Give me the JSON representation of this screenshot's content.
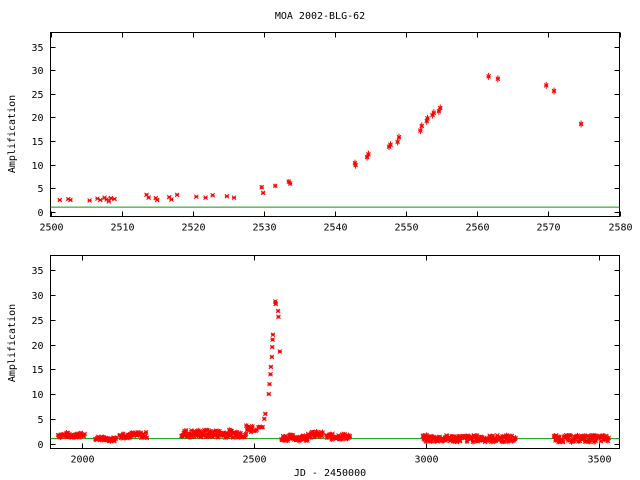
{
  "title": "MOA 2002-BLG-62",
  "colors": {
    "points": "#ff0000",
    "baseline": "#00a000",
    "axes": "#000000"
  },
  "chart_data": [
    {
      "type": "scatter",
      "title": "MOA 2002-BLG-62",
      "xlabel": "",
      "ylabel": "Amplification",
      "xlim": [
        2500,
        2580
      ],
      "ylim": [
        -1,
        38
      ],
      "xticks": [
        "2500",
        "2510",
        "2520",
        "2530",
        "2540",
        "2550",
        "2560",
        "2570",
        "2580"
      ],
      "yticks": [
        "0",
        "5",
        "10",
        "15",
        "20",
        "25",
        "30",
        "35"
      ],
      "baseline": 1.0,
      "grid": false,
      "points": [
        [
          2501.3,
          2.5
        ],
        [
          2502.5,
          2.7
        ],
        [
          2502.8,
          2.5
        ],
        [
          2505.5,
          2.4
        ],
        [
          2506.6,
          2.8
        ],
        [
          2507.0,
          2.5
        ],
        [
          2507.6,
          3.0
        ],
        [
          2507.9,
          2.6
        ],
        [
          2508.2,
          2.2
        ],
        [
          2508.5,
          2.9
        ],
        [
          2509.0,
          2.7
        ],
        [
          2513.5,
          3.6
        ],
        [
          2513.8,
          3.0
        ],
        [
          2514.8,
          2.9
        ],
        [
          2515.0,
          2.5
        ],
        [
          2516.7,
          3.1
        ],
        [
          2517.0,
          2.6
        ],
        [
          2517.8,
          3.6
        ],
        [
          2520.5,
          3.2
        ],
        [
          2521.8,
          3.0
        ],
        [
          2522.8,
          3.5
        ],
        [
          2524.8,
          3.3
        ],
        [
          2525.8,
          3.0
        ],
        [
          2529.7,
          5.2
        ],
        [
          2529.9,
          4.0
        ],
        [
          2531.6,
          5.5
        ],
        [
          2533.5,
          6.4
        ],
        [
          2533.7,
          6.0
        ],
        [
          2542.8,
          10.3
        ],
        [
          2542.9,
          9.9
        ],
        [
          2544.5,
          11.6
        ],
        [
          2544.7,
          12.2
        ],
        [
          2547.6,
          13.8
        ],
        [
          2547.8,
          14.2
        ],
        [
          2548.8,
          14.8
        ],
        [
          2549.0,
          15.8
        ],
        [
          2552.0,
          17.2
        ],
        [
          2552.2,
          18.2
        ],
        [
          2552.9,
          19.2
        ],
        [
          2553.0,
          19.8
        ],
        [
          2553.7,
          20.5
        ],
        [
          2553.9,
          21.0
        ],
        [
          2554.6,
          21.3
        ],
        [
          2554.8,
          22.0
        ],
        [
          2561.6,
          28.7
        ],
        [
          2562.9,
          28.2
        ],
        [
          2569.7,
          26.8
        ],
        [
          2570.8,
          25.6
        ],
        [
          2574.6,
          18.6
        ]
      ]
    },
    {
      "type": "scatter",
      "title": "",
      "xlabel": "JD - 2450000",
      "ylabel": "Amplification",
      "xlim": [
        1910,
        3560
      ],
      "ylim": [
        -1,
        38
      ],
      "xticks": [
        "2000",
        "2500",
        "3000",
        "3500"
      ],
      "yticks": [
        "0",
        "5",
        "10",
        "15",
        "20",
        "25",
        "30",
        "35"
      ],
      "baseline": 1.0,
      "grid": false,
      "seasons": [
        {
          "start": 1932,
          "end": 2010,
          "level": 1.7,
          "spread": 0.5
        },
        {
          "start": 2060,
          "end": 2100,
          "level": 0.9,
          "spread": 0.4
        },
        {
          "start": 2040,
          "end": 2065,
          "level": 1.1,
          "spread": 0.4
        },
        {
          "start": 2110,
          "end": 2190,
          "level": 1.7,
          "spread": 0.6
        },
        {
          "start": 2290,
          "end": 2478,
          "level": 2.0,
          "spread": 0.8
        },
        {
          "start": 2478,
          "end": 2497,
          "level": 3.0,
          "spread": 0.8
        },
        {
          "start": 2580,
          "end": 2655,
          "level": 1.2,
          "spread": 0.6
        },
        {
          "start": 2655,
          "end": 2700,
          "level": 1.8,
          "spread": 0.6
        },
        {
          "start": 2710,
          "end": 2780,
          "level": 1.4,
          "spread": 0.6
        },
        {
          "start": 2990,
          "end": 3260,
          "level": 1.0,
          "spread": 0.7
        },
        {
          "start": 3370,
          "end": 3530,
          "level": 1.0,
          "spread": 0.7
        }
      ],
      "peak_points": [
        [
          2501,
          2.5
        ],
        [
          2505,
          2.6
        ],
        [
          2508,
          2.8
        ],
        [
          2513,
          3.3
        ],
        [
          2517,
          3.4
        ],
        [
          2521,
          3.3
        ],
        [
          2525,
          3.3
        ],
        [
          2530,
          5.0
        ],
        [
          2533,
          6.0
        ],
        [
          2543,
          10.0
        ],
        [
          2545,
          12.0
        ],
        [
          2548,
          14.0
        ],
        [
          2549,
          15.5
        ],
        [
          2552,
          17.5
        ],
        [
          2553,
          19.5
        ],
        [
          2554,
          21.0
        ],
        [
          2555,
          22.0
        ],
        [
          2562,
          28.7
        ],
        [
          2563,
          28.2
        ],
        [
          2570,
          26.8
        ],
        [
          2571,
          25.6
        ],
        [
          2575,
          18.6
        ]
      ]
    }
  ]
}
